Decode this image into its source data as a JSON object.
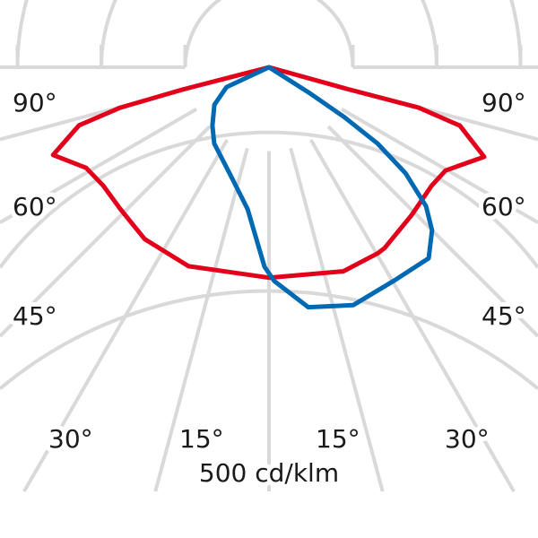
{
  "chart_data": {
    "type": "polar-line",
    "unit_label": "500 cd/klm",
    "ring_step": 100,
    "rings": [
      100,
      200,
      300,
      400,
      500,
      600
    ],
    "angle_spokes": [
      -75,
      -60,
      -45,
      -30,
      -15,
      0,
      15,
      30,
      45,
      60,
      75,
      90,
      -90
    ],
    "angle_labels": {
      "left": [
        "90°",
        "60°",
        "45°",
        "30°",
        "15°"
      ],
      "right": [
        "90°",
        "60°",
        "45°",
        "30°",
        "15°"
      ]
    },
    "grid": true,
    "series": [
      {
        "color": "#e2001a",
        "points": [
          [
            -90,
            0
          ],
          [
            -75.5,
            107
          ],
          [
            -74.8,
            184
          ],
          [
            -73,
            237
          ],
          [
            -67.9,
            278
          ],
          [
            -61.2,
            249
          ],
          [
            -54.5,
            243
          ],
          [
            -46.4,
            245
          ],
          [
            -35.9,
            253
          ],
          [
            -22,
            256
          ],
          [
            0,
            251
          ],
          [
            20,
            259
          ],
          [
            30.2,
            257
          ],
          [
            32.6,
            256
          ],
          [
            44,
            245
          ],
          [
            54,
            240
          ],
          [
            59.7,
            244
          ],
          [
            67.4,
            278
          ],
          [
            73,
            238
          ],
          [
            74.9,
            185
          ],
          [
            74.5,
            100
          ],
          [
            90,
            0
          ]
        ]
      },
      {
        "color": "#0069b4",
        "points": [
          [
            -90,
            0
          ],
          [
            -64.9,
            56
          ],
          [
            -55.5,
            79
          ],
          [
            -44.1,
            97
          ],
          [
            -35.7,
            112
          ],
          [
            -20.4,
            135
          ],
          [
            -8.6,
            171
          ],
          [
            -1.3,
            238
          ],
          [
            1.4,
            255
          ],
          [
            9.3,
            290
          ],
          [
            19.5,
            301
          ],
          [
            30.5,
            295
          ],
          [
            39.9,
            297
          ],
          [
            45,
            275
          ],
          [
            48.5,
            250
          ],
          [
            52.2,
            206
          ],
          [
            54.9,
            158
          ],
          [
            56.5,
            107
          ],
          [
            57.5,
            56
          ],
          [
            58,
            0
          ]
        ]
      }
    ]
  }
}
